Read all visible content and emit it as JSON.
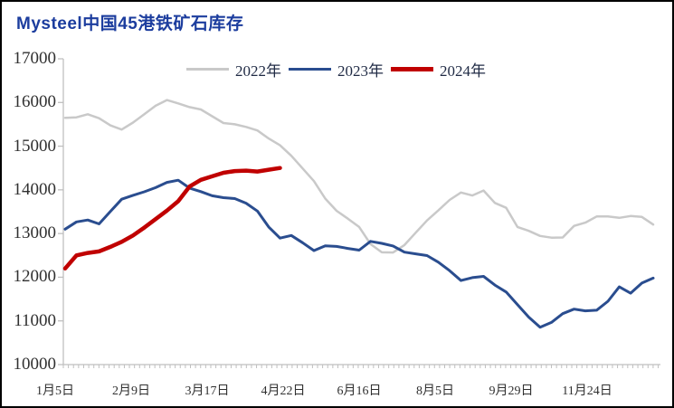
{
  "title": "Mysteel中国45港铁矿石库存",
  "colors": {
    "title": "#1c3d9e",
    "axis_line": "#bfbfbf",
    "axis_text": "#303030",
    "legend_text": "#1f2a44",
    "series_2022": "#c9c9c9",
    "series_2023": "#2a4d8f",
    "series_2024": "#c00000"
  },
  "legend": {
    "position": "top-center",
    "items": [
      {
        "label": "2022年",
        "color": "#c9c9c9",
        "weight": 3
      },
      {
        "label": "2023年",
        "color": "#2a4d8f",
        "weight": 3
      },
      {
        "label": "2024年",
        "color": "#c00000",
        "weight": 5
      }
    ]
  },
  "chart_data": {
    "type": "line",
    "title": "Mysteel中国45港铁矿石库存",
    "xlabel": "",
    "ylabel": "",
    "ylim": [
      10000,
      17000
    ],
    "y_tick_interval": 1000,
    "y_tick_labels": [
      "17000",
      "16000",
      "15000",
      "14000",
      "13000",
      "12000",
      "11000",
      "10000"
    ],
    "x_tick_labels": [
      "1月5日",
      "2月9日",
      "3月17日",
      "4月22日",
      "6月16日",
      "8月5日",
      "9月29日",
      "11月24日"
    ],
    "grid": false,
    "legend_position": "top",
    "series": [
      {
        "name": "2022年",
        "color": "#c9c9c9",
        "values": [
          15650,
          15660,
          15730,
          15640,
          15475,
          15380,
          15540,
          15730,
          15925,
          16055,
          15980,
          15895,
          15840,
          15685,
          15530,
          15500,
          15440,
          15360,
          15175,
          15020,
          14780,
          14490,
          14200,
          13800,
          13520,
          13340,
          13150,
          12760,
          12570,
          12565,
          12735,
          13020,
          13300,
          13530,
          13770,
          13940,
          13870,
          13985,
          13700,
          13590,
          13150,
          13060,
          12945,
          12905,
          12910,
          13175,
          13250,
          13390,
          13390,
          13360,
          13400,
          13380,
          13205
        ]
      },
      {
        "name": "2023年",
        "color": "#2a4d8f",
        "values": [
          13100,
          13265,
          13310,
          13220,
          13505,
          13785,
          13875,
          13955,
          14050,
          14170,
          14220,
          14040,
          13960,
          13865,
          13820,
          13800,
          13695,
          13515,
          13150,
          12895,
          12955,
          12790,
          12610,
          12720,
          12705,
          12660,
          12620,
          12820,
          12775,
          12715,
          12575,
          12535,
          12495,
          12345,
          12150,
          11925,
          11990,
          12020,
          11820,
          11660,
          11370,
          11085,
          10855,
          10965,
          11165,
          11270,
          11230,
          11245,
          11450,
          11780,
          11635,
          11865,
          11980
        ]
      },
      {
        "name": "2024年",
        "color": "#c00000",
        "values": [
          12200,
          12500,
          12555,
          12590,
          12695,
          12810,
          12955,
          13135,
          13330,
          13525,
          13740,
          14075,
          14230,
          14310,
          14390,
          14430,
          14440,
          14420,
          14460,
          14500
        ]
      }
    ]
  }
}
